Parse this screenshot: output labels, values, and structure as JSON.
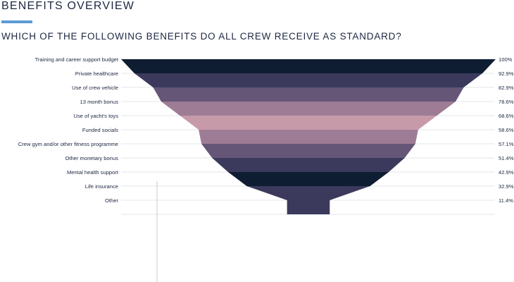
{
  "header": {
    "title": "BENEFITS OVERVIEW",
    "question": "WHICH OF THE FOLLOWING BENEFITS DO ALL CREW RECEIVE AS STANDARD?"
  },
  "chart_data": {
    "type": "funnel",
    "categories": [
      "Training and career support budget",
      "Private healthcare",
      "Use of crew vehicle",
      "13 month bonus",
      "Use of yacht's toys",
      "Funded socials",
      "Crew gym and/or other fitness programme",
      "Other monetary bonus",
      "Mental health support",
      "Life insurance",
      "Other"
    ],
    "values": [
      100,
      92.9,
      82.9,
      78.6,
      68.6,
      58.6,
      57.1,
      51.4,
      42.9,
      32.9,
      11.4
    ],
    "value_labels": [
      "100%",
      "92.9%",
      "82.9%",
      "78.6%",
      "68.6%",
      "58.6%",
      "57.1%",
      "51.4%",
      "42.9%",
      "32.9%",
      "11.4%"
    ],
    "colors": [
      "#0f1d33",
      "#3b3a5c",
      "#655677",
      "#9e7c95",
      "#c79aaa",
      "#9e7c95",
      "#655677",
      "#3b3a5c",
      "#0f1d33",
      "#3b3a5c",
      "#3b3a5c"
    ],
    "grid": true
  }
}
